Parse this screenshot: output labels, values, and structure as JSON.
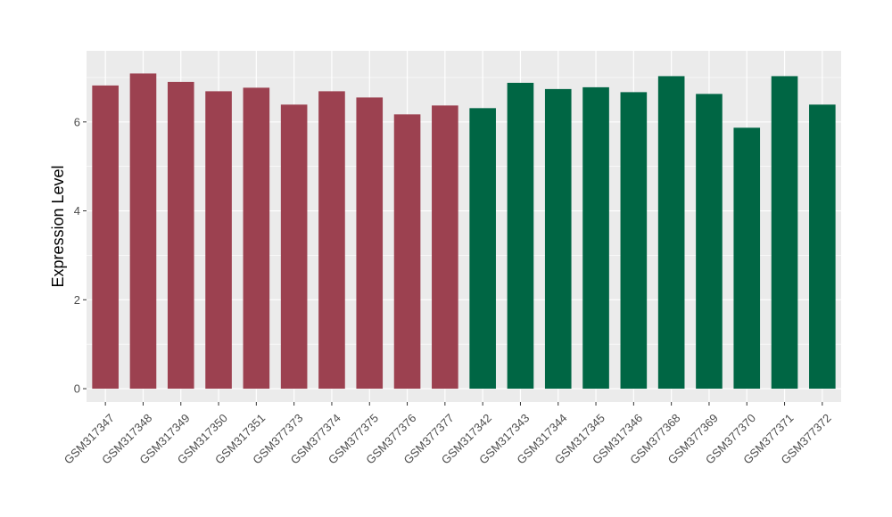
{
  "chart_data": {
    "type": "bar",
    "title": "",
    "xlabel": "",
    "ylabel": "Expression Level",
    "ylim": [
      -0.3,
      7.6
    ],
    "yticks": [
      0,
      2,
      4,
      6
    ],
    "grid": true,
    "legend": "none",
    "categories": [
      "GSM317347",
      "GSM317348",
      "GSM317349",
      "GSM317350",
      "GSM317351",
      "GSM377373",
      "GSM377374",
      "GSM377375",
      "GSM377376",
      "GSM377377",
      "GSM317342",
      "GSM317343",
      "GSM317344",
      "GSM317345",
      "GSM317346",
      "GSM377368",
      "GSM377369",
      "GSM377370",
      "GSM377371",
      "GSM377372"
    ],
    "values": [
      6.82,
      7.09,
      6.9,
      6.69,
      6.77,
      6.39,
      6.69,
      6.55,
      6.17,
      6.37,
      6.31,
      6.88,
      6.74,
      6.78,
      6.67,
      7.03,
      6.63,
      5.87,
      7.03,
      6.39
    ],
    "groups": [
      0,
      0,
      0,
      0,
      0,
      0,
      0,
      0,
      0,
      0,
      1,
      1,
      1,
      1,
      1,
      1,
      1,
      1,
      1,
      1
    ],
    "colors": [
      "#9c4150",
      "#006644"
    ],
    "panel_bg": "#ebebeb",
    "grid_color": "#ffffff"
  }
}
